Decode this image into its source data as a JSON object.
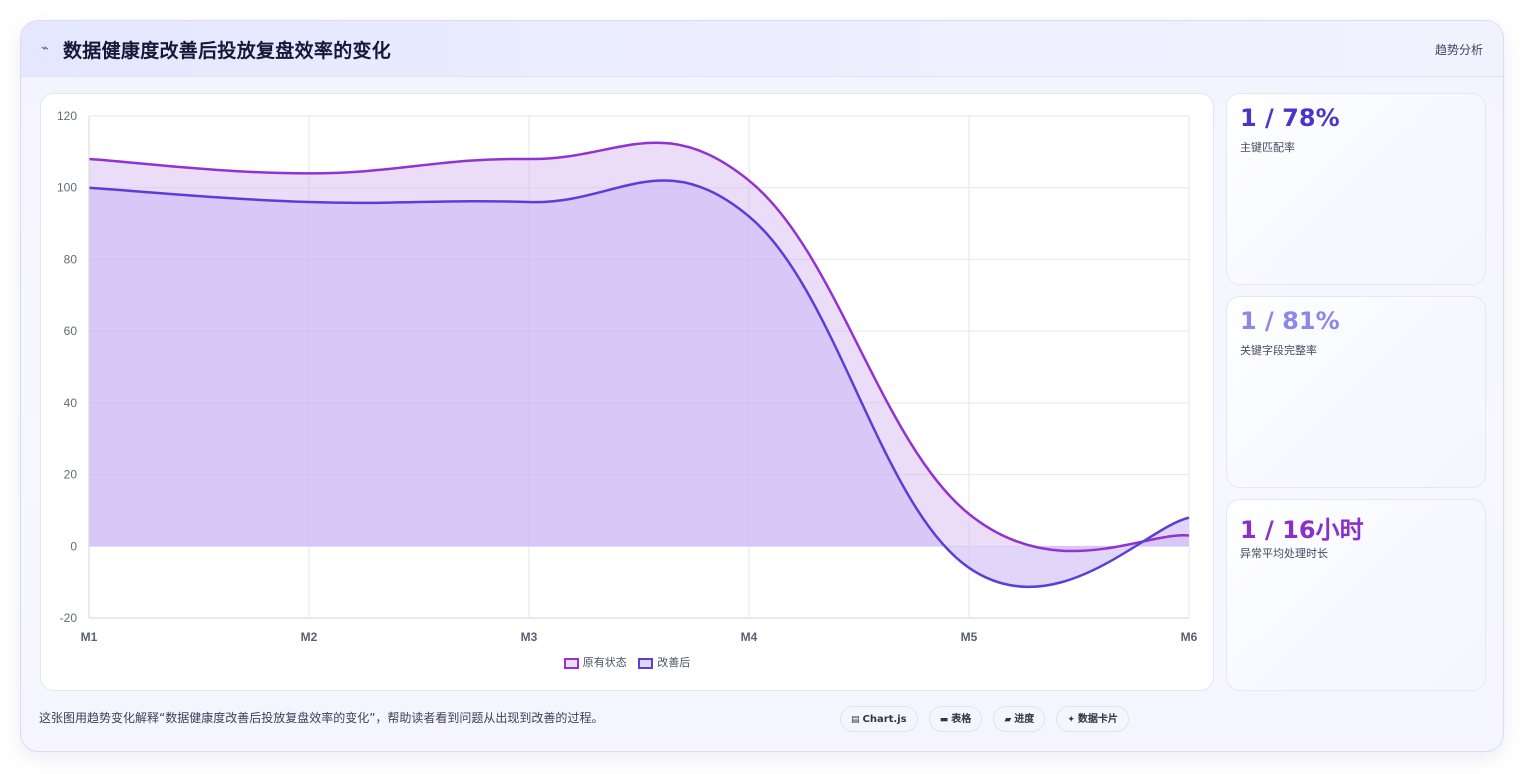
{
  "header": {
    "icon": "trend-line-icon",
    "title": "数据健康度改善后投放复盘效率的变化",
    "tag": "趋势分析"
  },
  "colors": {
    "series_before": "#9333cf",
    "series_after": "#5a3fd6",
    "fill_before": "rgba(210,180,240,0.45)",
    "fill_after": "rgba(200,180,245,0.55)",
    "kpi1": "#4a35c8",
    "kpi2": "#8d87e8",
    "kpi3": "#8b2fc9"
  },
  "chart_data": {
    "type": "area",
    "x": [
      "M1",
      "M2",
      "M3",
      "M4",
      "M5",
      "M6"
    ],
    "series": [
      {
        "name": "原有状态",
        "values": [
          108,
          104,
          108,
          102,
          9,
          3
        ]
      },
      {
        "name": "改善后",
        "values": [
          100,
          96,
          96,
          92,
          -6,
          8
        ]
      }
    ],
    "ylim": [
      -20,
      120
    ],
    "yticks": [
      120,
      100,
      80,
      60,
      40,
      20,
      0,
      -20
    ],
    "grid": true,
    "legend_position": "bottom",
    "smooth": true
  },
  "kpis": [
    {
      "value": "1 / 78%",
      "label": "主键匹配率"
    },
    {
      "value": "1 / 81%",
      "label": "关键字段完整率"
    },
    {
      "value": "1 / 16小时",
      "label": "异常平均处理时长"
    }
  ],
  "footer": {
    "caption": "这张图用趋势变化解释“数据健康度改善后投放复盘效率的变化”，帮助读者看到问题从出现到改善的过程。",
    "chips": [
      {
        "icon": "chart-icon",
        "glyph": "▤",
        "label": "Chart.js"
      },
      {
        "icon": "table-icon",
        "glyph": "▬",
        "label": "表格"
      },
      {
        "icon": "progress-icon",
        "glyph": "▰",
        "label": "进度"
      },
      {
        "icon": "card-icon",
        "glyph": "✦",
        "label": "数据卡片"
      }
    ]
  }
}
